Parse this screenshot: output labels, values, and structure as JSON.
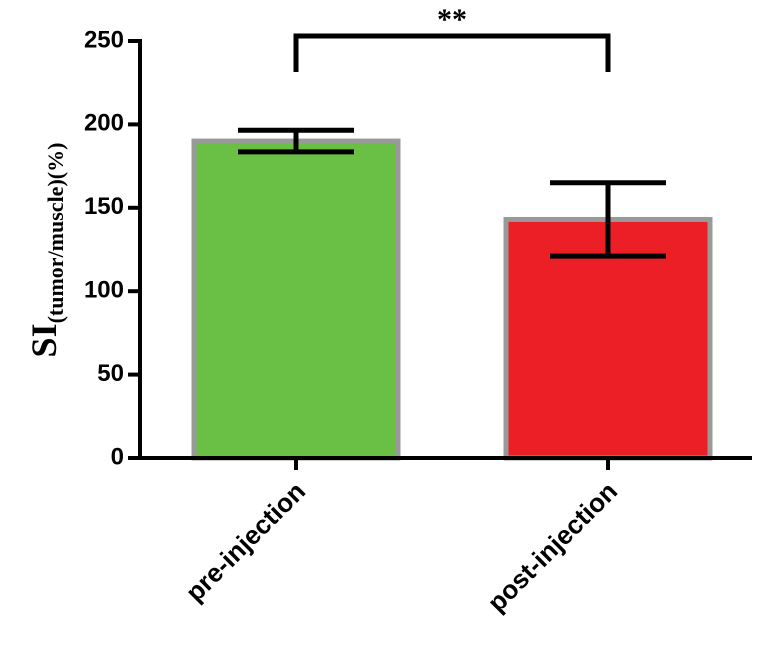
{
  "chart_data": {
    "type": "bar",
    "ylabel": "SI",
    "ylabel_subscript": "(tumor/muscle)",
    "ylabel_suffix": "(%)",
    "annotation": "**",
    "categories": [
      "pre-injection",
      "post-injection"
    ],
    "values": [
      190,
      143
    ],
    "errors": [
      6.5,
      22
    ],
    "colors": [
      "#6abf45",
      "#ed1f26"
    ],
    "edge_color": "#999999",
    "ylim": [
      0,
      250
    ],
    "yticks": [
      0,
      50,
      100,
      150,
      200,
      250
    ]
  }
}
